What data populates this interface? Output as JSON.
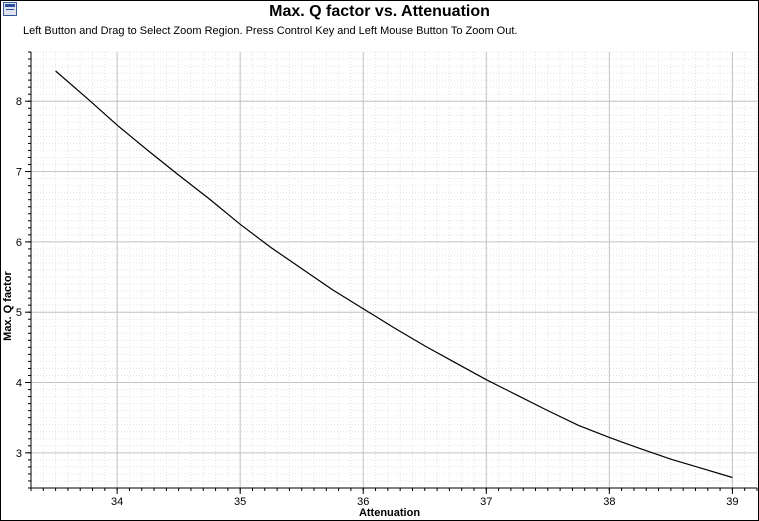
{
  "window": {
    "icon": "chart-window-icon"
  },
  "chart_data": {
    "type": "line",
    "title": "Max. Q factor vs. Attenuation",
    "hint": "Left Button and Drag to Select Zoom Region. Press Control Key and Left Mouse Button To Zoom Out.",
    "xlabel": "Attenuation",
    "ylabel": "Max. Q factor",
    "xlim": [
      33.3,
      39.2
    ],
    "ylim": [
      2.5,
      8.7
    ],
    "xticks": [
      34,
      35,
      36,
      37,
      38,
      39
    ],
    "yticks": [
      3,
      4,
      5,
      6,
      7,
      8
    ],
    "grid": true,
    "series": [
      {
        "color": "#000000",
        "x": [
          33.5,
          33.75,
          34.0,
          34.25,
          34.5,
          34.75,
          35.0,
          35.25,
          35.5,
          35.75,
          36.0,
          36.25,
          36.5,
          36.75,
          37.0,
          37.25,
          37.5,
          37.75,
          38.0,
          38.25,
          38.5,
          38.75,
          39.0
        ],
        "y": [
          8.43,
          8.05,
          7.66,
          7.3,
          6.95,
          6.61,
          6.25,
          5.92,
          5.62,
          5.32,
          5.05,
          4.78,
          4.52,
          4.28,
          4.04,
          3.82,
          3.6,
          3.39,
          3.22,
          3.06,
          2.91,
          2.78,
          2.65
        ]
      }
    ]
  }
}
